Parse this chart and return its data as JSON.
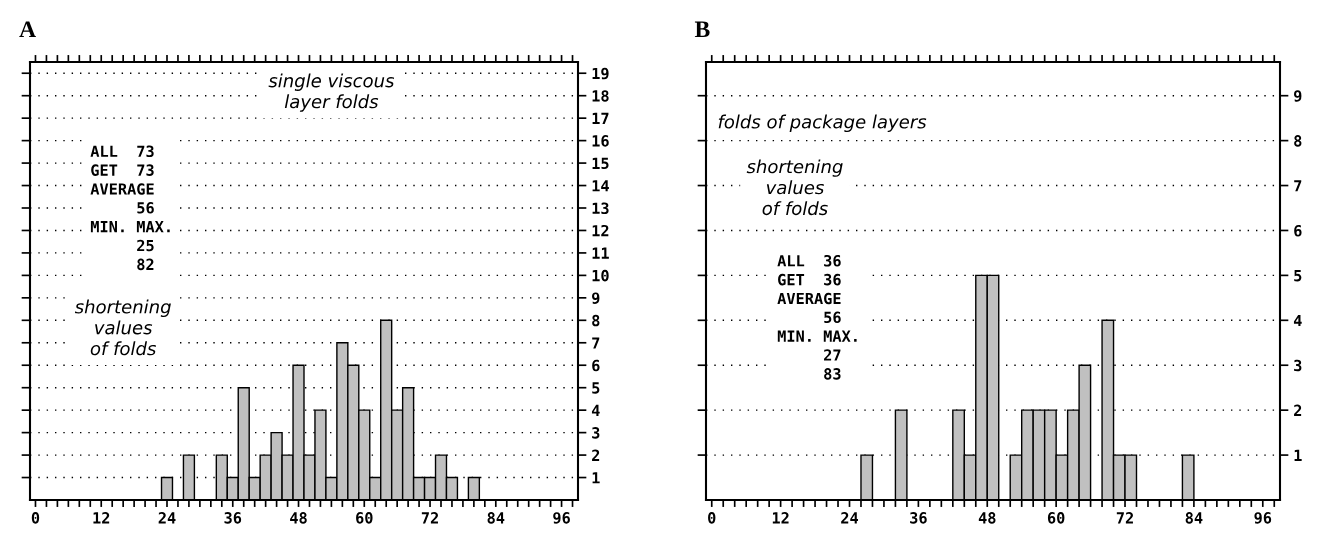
{
  "chart_data": [
    {
      "type": "histogram",
      "title": "A",
      "color": "#c0c0c0",
      "bins": [
        23,
        25,
        27,
        29,
        31,
        33,
        35,
        37,
        39,
        41,
        43,
        45,
        47,
        49,
        51,
        53,
        55,
        57,
        59,
        61,
        63,
        65,
        67,
        69,
        71,
        73,
        75,
        77,
        79,
        81
      ],
      "values": [
        1,
        0,
        2,
        0,
        0,
        2,
        1,
        5,
        1,
        2,
        3,
        2,
        6,
        2,
        4,
        1,
        7,
        6,
        4,
        1,
        8,
        4,
        5,
        1,
        1,
        2,
        1,
        0,
        1
      ],
      "xlim": [
        -1,
        99
      ],
      "xticks": [
        0,
        12,
        24,
        36,
        48,
        60,
        72,
        84,
        96
      ],
      "ylim": [
        0,
        19.5
      ],
      "yticks": [
        1,
        2,
        3,
        4,
        5,
        6,
        7,
        8,
        9,
        10,
        11,
        12,
        13,
        14,
        15,
        16,
        17,
        18,
        19
      ],
      "grid": "y",
      "annotations": [
        "single viscous\nlayer folds",
        "ALL  73\nGET  73\nAVERAGE\n     56\nMIN. MAX.\n     25\n     82",
        "shortening\nvalues\nof folds"
      ]
    },
    {
      "type": "histogram",
      "title": "B",
      "color": "#c0c0c0",
      "bins": [
        26,
        28,
        30,
        32,
        34,
        36,
        38,
        40,
        42,
        44,
        46,
        48,
        50,
        52,
        54,
        56,
        58,
        60,
        62,
        64,
        66,
        68,
        70,
        72,
        74,
        76,
        78,
        80,
        82,
        84
      ],
      "values": [
        1,
        0,
        0,
        2,
        0,
        0,
        0,
        0,
        2,
        1,
        5,
        5,
        0,
        1,
        2,
        2,
        2,
        1,
        2,
        3,
        0,
        4,
        1,
        1,
        0,
        0,
        0,
        0,
        1
      ],
      "xlim": [
        -1,
        99
      ],
      "xticks": [
        0,
        12,
        24,
        36,
        48,
        60,
        72,
        84,
        96
      ],
      "ylim": [
        0,
        9.75
      ],
      "yticks": [
        1,
        2,
        3,
        4,
        5,
        6,
        7,
        8,
        9
      ],
      "grid": "y",
      "annotations": [
        "folds of package layers",
        "shortening\nvalues\nof folds",
        "ALL  36\nGET  36\nAVERAGE\n     56\nMIN. MAX.\n     27\n     83"
      ]
    }
  ]
}
